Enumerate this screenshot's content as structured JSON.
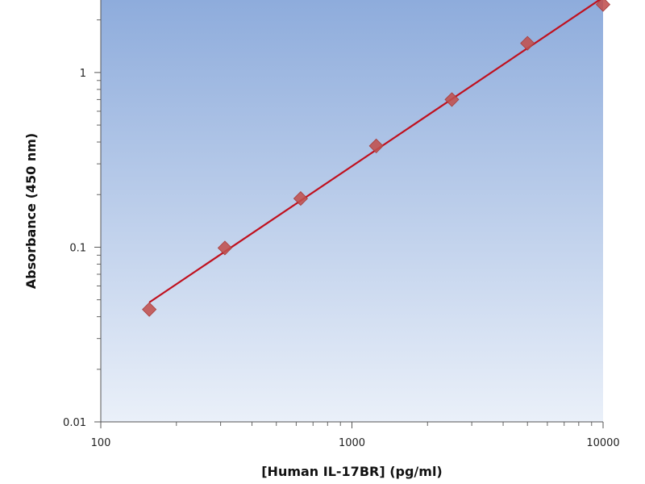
{
  "chart_data": {
    "type": "scatter",
    "title": "",
    "xlabel": "[Human IL-17BR] (pg/ml)",
    "ylabel": "Absorbance (450 nm)",
    "x_scale": "log",
    "y_scale": "log",
    "xlim": [
      100,
      10000
    ],
    "ylim": [
      0.01,
      2.6
    ],
    "x_ticks": [
      {
        "value": 100,
        "label": "100"
      },
      {
        "value": 1000,
        "label": "1000"
      },
      {
        "value": 10000,
        "label": "10000"
      }
    ],
    "y_ticks": [
      {
        "value": 0.01,
        "label": "0.01"
      },
      {
        "value": 0.1,
        "label": "0.1"
      },
      {
        "value": 1,
        "label": "1"
      }
    ],
    "grid": false,
    "legend": "none",
    "series": [
      {
        "x": [
          156,
          312,
          625,
          1250,
          2500,
          5000,
          10000
        ],
        "y": [
          0.044,
          0.099,
          0.19,
          0.38,
          0.7,
          1.47,
          2.45
        ],
        "marker": "diamond",
        "fit_line": true
      }
    ],
    "colors": {
      "marker": "#c0504d",
      "fit_line": "#c0101e",
      "plot_bg_top": "#8eacdc",
      "plot_bg_bottom": "#eaf0f9"
    }
  }
}
